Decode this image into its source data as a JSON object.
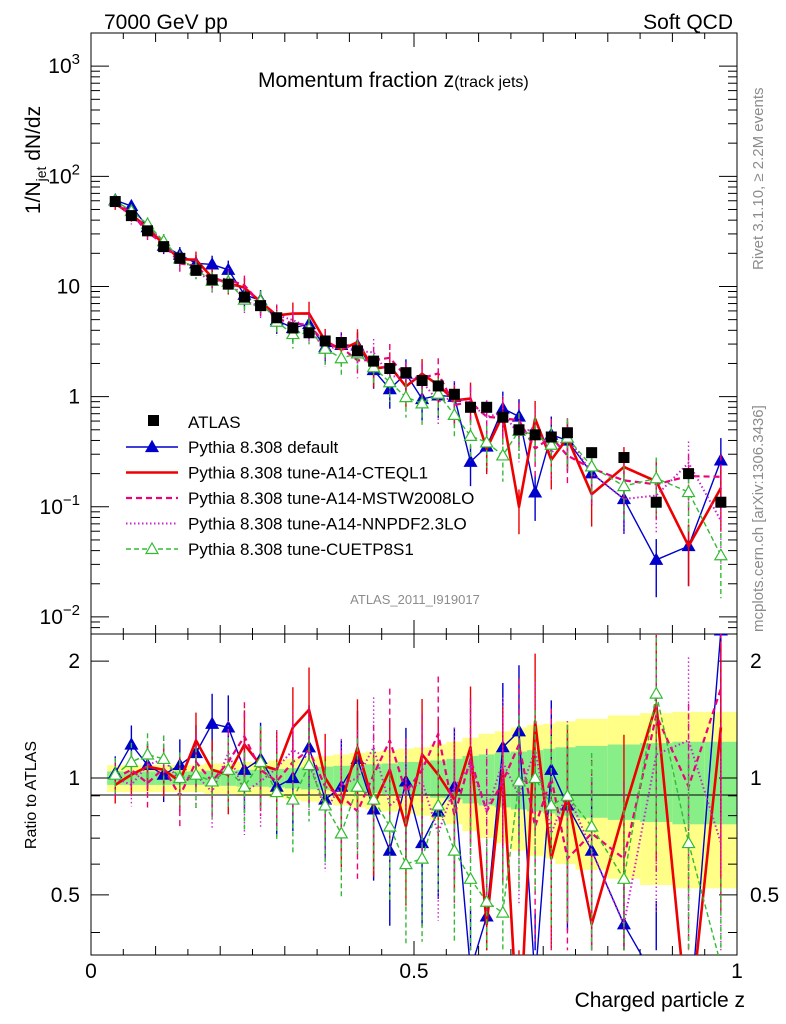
{
  "header": {
    "left": "7000 GeV pp",
    "right": "Soft QCD"
  },
  "side_labels": {
    "rivet": "Rivet 3.1.10, ≥ 2.2M events",
    "ref": "mcplots.cern.ch [arXiv:1306.3436]"
  },
  "watermark": "ATLAS_2011_I919017",
  "chart_data": {
    "type": "line",
    "title_main": "Momentum fraction z",
    "title_sub": "(track jets)",
    "ylabel_parts": {
      "pre": "1/N",
      "sub": "jet",
      "post": " dN/dz"
    },
    "xlabel": "Charged particle z",
    "ratio_ylabel": "Ratio to ATLAS",
    "xlim": [
      0,
      1
    ],
    "ylim": [
      0.007,
      2000
    ],
    "yscale": "log",
    "ratio_ylim": [
      0.35,
      2.35
    ],
    "x_ticks": [
      "0",
      "0.5",
      "1"
    ],
    "y_ticks": [
      {
        "v": 0.01,
        "base": "10",
        "exp": "−2"
      },
      {
        "v": 0.1,
        "base": "10",
        "exp": "−1"
      },
      {
        "v": 1,
        "base": "1",
        "exp": ""
      },
      {
        "v": 10,
        "base": "10",
        "exp": ""
      },
      {
        "v": 100,
        "base": "10",
        "exp": "2"
      },
      {
        "v": 1000,
        "base": "10",
        "exp": "3"
      }
    ],
    "ratio_ticks": [
      "0.5",
      "1",
      "2"
    ],
    "x": [
      0.0375,
      0.0625,
      0.0875,
      0.1125,
      0.1375,
      0.1625,
      0.1875,
      0.2125,
      0.2375,
      0.2625,
      0.2875,
      0.3125,
      0.3375,
      0.3625,
      0.3875,
      0.4125,
      0.4375,
      0.4625,
      0.4875,
      0.5125,
      0.5375,
      0.5625,
      0.5875,
      0.6125,
      0.6375,
      0.6625,
      0.6875,
      0.7125,
      0.7375,
      0.775,
      0.825,
      0.875,
      0.925,
      0.975
    ],
    "atlas": [
      59,
      44,
      32,
      23,
      18,
      14,
      11.5,
      10.5,
      8,
      6.7,
      5.2,
      4.2,
      3.8,
      3.2,
      3.1,
      2.6,
      2.1,
      1.8,
      1.65,
      1.4,
      1.25,
      1.05,
      0.8,
      0.8,
      0.65,
      0.5,
      0.45,
      0.43,
      0.47,
      0.31,
      0.28,
      0.11,
      0.2,
      0.11
    ],
    "series": [
      {
        "name": "Pythia 8.308 default",
        "color": "#0000cc",
        "dash": "",
        "width": 1.4,
        "marker": "tri-filled",
        "ratio": [
          1.03,
          1.22,
          1.08,
          1.02,
          1.08,
          1.16,
          1.38,
          1.35,
          1.05,
          1.12,
          0.95,
          1.0,
          1.2,
          0.88,
          0.95,
          1.12,
          0.83,
          0.65,
          0.98,
          0.68,
          0.82,
          0.95,
          0.32,
          0.44,
          1.2,
          1.32,
          0.3,
          1.05,
          0.85,
          0.65,
          0.42,
          0.3,
          0.22,
          2.4
        ]
      },
      {
        "name": "Pythia 8.308 tune-A14-CTEQL1",
        "color": "#ee0000",
        "dash": "",
        "width": 2.6,
        "marker": "",
        "ratio": [
          0.96,
          1.02,
          1.07,
          1.05,
          0.98,
          1.25,
          1.05,
          1.02,
          1.22,
          1.08,
          1.05,
          1.35,
          1.5,
          1.0,
          0.86,
          1.2,
          0.85,
          1.05,
          0.75,
          1.15,
          1.02,
          0.88,
          1.2,
          0.42,
          1.05,
          0.2,
          1.4,
          0.62,
          0.9,
          0.42,
          0.82,
          1.55,
          0.22,
          1.35
        ]
      },
      {
        "name": "Pythia 8.308 tune-A14-MSTW2008LO",
        "color": "#ee0077",
        "dash": "6,4",
        "width": 2.2,
        "marker": "",
        "ratio": [
          1.0,
          1.05,
          0.97,
          1.06,
          0.9,
          1.1,
          0.98,
          1.1,
          1.28,
          1.05,
          0.98,
          1.1,
          1.18,
          0.95,
          0.9,
          0.82,
          1.02,
          1.25,
          0.92,
          1.05,
          1.3,
          0.8,
          1.12,
          0.82,
          0.98,
          1.22,
          0.75,
          1.0,
          0.62,
          0.72,
          0.62,
          1.45,
          0.95,
          1.7
        ]
      },
      {
        "name": "Pythia 8.308 tune-A14-NNPDF2.3LO",
        "color": "#cc22cc",
        "dash": "1.5,2.5",
        "width": 2.0,
        "marker": "",
        "ratio": [
          1.0,
          0.96,
          1.08,
          1.12,
          0.98,
          1.02,
          0.92,
          1.16,
          0.92,
          0.98,
          1.06,
          1.18,
          1.12,
          0.82,
          0.96,
          1.0,
          1.2,
          0.85,
          0.92,
          0.98,
          0.72,
          0.95,
          1.08,
          0.82,
          1.1,
          0.9,
          1.18,
          0.72,
          0.92,
          0.65,
          0.42,
          1.15,
          1.25,
          0.68
        ]
      },
      {
        "name": "Pythia 8.308 tune-CUETP8S1",
        "color": "#33bb33",
        "dash": "5,3",
        "width": 1.4,
        "marker": "tri-open",
        "ratio": [
          1.02,
          1.1,
          1.15,
          1.12,
          1.0,
          1.02,
          0.98,
          1.05,
          0.95,
          1.1,
          0.92,
          0.88,
          1.08,
          0.85,
          0.72,
          0.95,
          0.88,
          0.75,
          0.6,
          0.62,
          0.85,
          0.65,
          0.55,
          0.48,
          0.45,
          0.98,
          1.0,
          0.85,
          0.9,
          0.75,
          0.55,
          1.65,
          0.68,
          0.33
        ]
      }
    ],
    "error_bands": {
      "yellow": "#ffff88",
      "green": "#88ee88",
      "yellow_half": [
        0.08,
        0.08,
        0.08,
        0.08,
        0.08,
        0.08,
        0.09,
        0.09,
        0.1,
        0.1,
        0.11,
        0.12,
        0.13,
        0.14,
        0.15,
        0.16,
        0.17,
        0.18,
        0.19,
        0.2,
        0.22,
        0.24,
        0.27,
        0.3,
        0.32,
        0.35,
        0.37,
        0.38,
        0.4,
        0.42,
        0.45,
        0.47,
        0.48,
        0.48
      ],
      "green_half": [
        0.04,
        0.04,
        0.04,
        0.04,
        0.04,
        0.04,
        0.045,
        0.045,
        0.05,
        0.05,
        0.055,
        0.06,
        0.065,
        0.07,
        0.075,
        0.08,
        0.085,
        0.09,
        0.1,
        0.1,
        0.11,
        0.12,
        0.14,
        0.15,
        0.16,
        0.17,
        0.18,
        0.19,
        0.2,
        0.21,
        0.22,
        0.23,
        0.24,
        0.24
      ]
    },
    "legend_placement": "left-lower",
    "grid": false
  }
}
